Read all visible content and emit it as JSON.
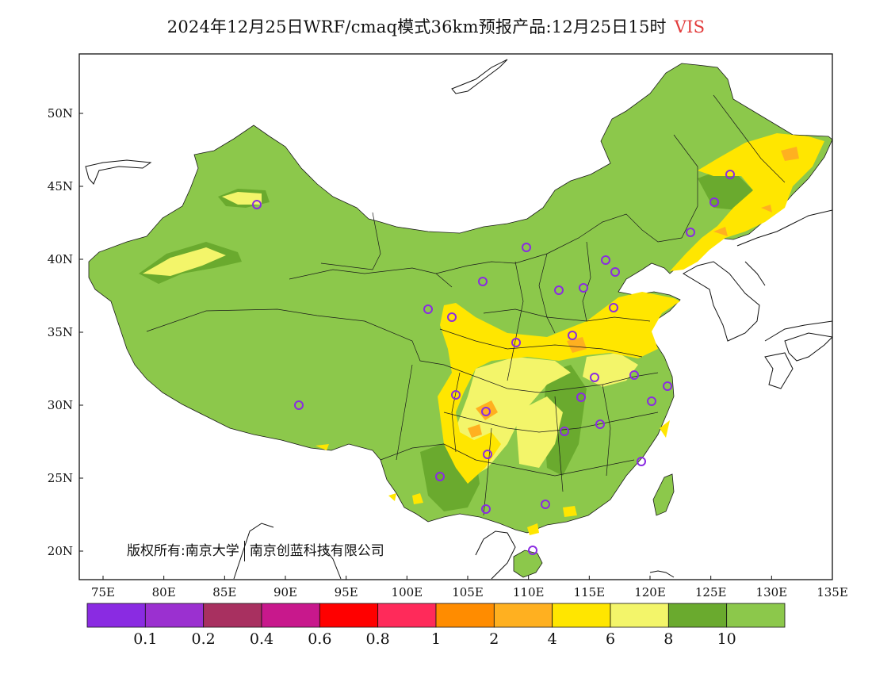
{
  "title": {
    "main": "2024年12月25日WRF/cmaq模式36km预报产品:12月25日15时",
    "variable": "VIS",
    "variable_color": "#e23a3a"
  },
  "axes": {
    "lon_ticks": [
      "75E",
      "80E",
      "85E",
      "90E",
      "95E",
      "100E",
      "105E",
      "110E",
      "115E",
      "120E",
      "125E",
      "130E",
      "135E"
    ],
    "lat_ticks": [
      "50N",
      "45N",
      "40N",
      "35N",
      "30N",
      "25N",
      "20N"
    ]
  },
  "colorbar": {
    "colors": [
      "#8a2be2",
      "#9b30d0",
      "#a83060",
      "#c8188c",
      "#ff0000",
      "#ff2a5a",
      "#ff8c00",
      "#ffb020",
      "#ffe600",
      "#f3f56a",
      "#6aaa2e",
      "#8cc84b"
    ],
    "labels": [
      "0.1",
      "0.2",
      "0.4",
      "0.6",
      "0.8",
      "1",
      "2",
      "4",
      "6",
      "8",
      "10"
    ]
  },
  "legend": {
    "copyright_prefix": "版权所有:",
    "org1": "南京大学",
    "org2": "南京创蓝科技有限公司"
  },
  "map_colors": {
    "base": "#8cc84b",
    "dark_green": "#6aaa2e",
    "light_yellow": "#f3f56a",
    "yellow": "#ffe600",
    "orange": "#ffb020",
    "station_marker": "#8a2be2"
  }
}
